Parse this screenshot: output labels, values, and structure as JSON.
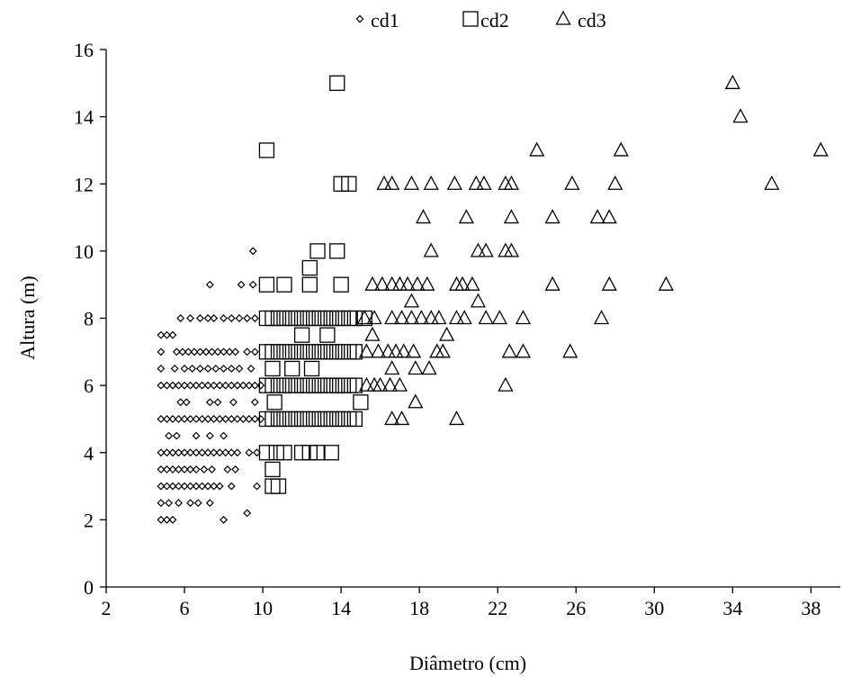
{
  "chart_data": {
    "type": "scatter",
    "title": "",
    "xlabel": "Diâmetro  (cm)",
    "ylabel": "Altura  (m)",
    "xlim": [
      2,
      39.5
    ],
    "ylim": [
      0,
      16
    ],
    "xticks": [
      2,
      6,
      10,
      14,
      18,
      22,
      26,
      30,
      34,
      38
    ],
    "yticks": [
      0,
      2,
      4,
      6,
      8,
      10,
      12,
      14,
      16
    ],
    "grid": false,
    "legend_position": "top-center",
    "series": [
      {
        "name": "cd1",
        "marker": "diamond",
        "points": [
          [
            4.8,
            7.5
          ],
          [
            5.1,
            7.5
          ],
          [
            5.4,
            7.5
          ],
          [
            4.8,
            7
          ],
          [
            5.6,
            7
          ],
          [
            5.9,
            7
          ],
          [
            6.2,
            7
          ],
          [
            6.5,
            7
          ],
          [
            6.8,
            7
          ],
          [
            7.1,
            7
          ],
          [
            7.4,
            7
          ],
          [
            7.7,
            7
          ],
          [
            8,
            7
          ],
          [
            8.3,
            7
          ],
          [
            8.6,
            7
          ],
          [
            9.2,
            7
          ],
          [
            9.6,
            7
          ],
          [
            5.8,
            8
          ],
          [
            6.3,
            8
          ],
          [
            6.8,
            8
          ],
          [
            7.2,
            8
          ],
          [
            7.5,
            8
          ],
          [
            8,
            8
          ],
          [
            8.4,
            8
          ],
          [
            8.8,
            8
          ],
          [
            9.2,
            8
          ],
          [
            9.6,
            8
          ],
          [
            4.8,
            6.5
          ],
          [
            5.5,
            6.5
          ],
          [
            6,
            6.5
          ],
          [
            6.4,
            6.5
          ],
          [
            6.8,
            6.5
          ],
          [
            7.2,
            6.5
          ],
          [
            7.6,
            6.5
          ],
          [
            8,
            6.5
          ],
          [
            8.4,
            6.5
          ],
          [
            8.8,
            6.5
          ],
          [
            9.4,
            6.5
          ],
          [
            4.8,
            6
          ],
          [
            5.1,
            6
          ],
          [
            5.4,
            6
          ],
          [
            5.7,
            6
          ],
          [
            6,
            6
          ],
          [
            6.3,
            6
          ],
          [
            6.6,
            6
          ],
          [
            6.9,
            6
          ],
          [
            7.2,
            6
          ],
          [
            7.5,
            6
          ],
          [
            7.8,
            6
          ],
          [
            8.1,
            6
          ],
          [
            8.4,
            6
          ],
          [
            8.7,
            6
          ],
          [
            9,
            6
          ],
          [
            9.3,
            6
          ],
          [
            9.6,
            6
          ],
          [
            9.9,
            6
          ],
          [
            5.8,
            5.5
          ],
          [
            6.1,
            5.5
          ],
          [
            7.3,
            5.5
          ],
          [
            7.7,
            5.5
          ],
          [
            8.5,
            5.5
          ],
          [
            9.6,
            5.5
          ],
          [
            4.8,
            5
          ],
          [
            5.1,
            5
          ],
          [
            5.4,
            5
          ],
          [
            5.7,
            5
          ],
          [
            6,
            5
          ],
          [
            6.3,
            5
          ],
          [
            6.6,
            5
          ],
          [
            6.9,
            5
          ],
          [
            7.2,
            5
          ],
          [
            7.5,
            5
          ],
          [
            7.8,
            5
          ],
          [
            8.1,
            5
          ],
          [
            8.4,
            5
          ],
          [
            8.7,
            5
          ],
          [
            9,
            5
          ],
          [
            9.3,
            5
          ],
          [
            9.6,
            5
          ],
          [
            9.9,
            5
          ],
          [
            5.2,
            4.5
          ],
          [
            5.6,
            4.5
          ],
          [
            6.6,
            4.5
          ],
          [
            7.3,
            4.5
          ],
          [
            8,
            4.5
          ],
          [
            4.8,
            4
          ],
          [
            5.1,
            4
          ],
          [
            5.4,
            4
          ],
          [
            5.7,
            4
          ],
          [
            6,
            4
          ],
          [
            6.3,
            4
          ],
          [
            6.6,
            4
          ],
          [
            6.9,
            4
          ],
          [
            7.2,
            4
          ],
          [
            7.5,
            4
          ],
          [
            7.8,
            4
          ],
          [
            8.1,
            4
          ],
          [
            8.4,
            4
          ],
          [
            8.7,
            4
          ],
          [
            9.3,
            4
          ],
          [
            9.7,
            4
          ],
          [
            4.8,
            3.5
          ],
          [
            5.1,
            3.5
          ],
          [
            5.4,
            3.5
          ],
          [
            5.7,
            3.5
          ],
          [
            6,
            3.5
          ],
          [
            6.3,
            3.5
          ],
          [
            6.6,
            3.5
          ],
          [
            7,
            3.5
          ],
          [
            7.4,
            3.5
          ],
          [
            8.2,
            3.5
          ],
          [
            8.6,
            3.5
          ],
          [
            4.8,
            3
          ],
          [
            5.1,
            3
          ],
          [
            5.4,
            3
          ],
          [
            5.7,
            3
          ],
          [
            6,
            3
          ],
          [
            6.3,
            3
          ],
          [
            6.6,
            3
          ],
          [
            6.9,
            3
          ],
          [
            7.2,
            3
          ],
          [
            7.5,
            3
          ],
          [
            7.8,
            3
          ],
          [
            8.4,
            3
          ],
          [
            9.7,
            3
          ],
          [
            4.8,
            2.5
          ],
          [
            5.2,
            2.5
          ],
          [
            5.7,
            2.5
          ],
          [
            6.3,
            2.5
          ],
          [
            6.7,
            2.5
          ],
          [
            7.3,
            2.5
          ],
          [
            4.8,
            2
          ],
          [
            5.1,
            2
          ],
          [
            5.4,
            2
          ],
          [
            8,
            2
          ],
          [
            9.2,
            2.2
          ],
          [
            7.3,
            9
          ],
          [
            8.9,
            9
          ],
          [
            9.5,
            9
          ],
          [
            9.5,
            10
          ]
        ]
      },
      {
        "name": "cd2",
        "marker": "square",
        "points": [
          [
            13.8,
            15
          ],
          [
            10.2,
            13
          ],
          [
            14,
            12
          ],
          [
            14.4,
            12
          ],
          [
            12.8,
            10
          ],
          [
            13.8,
            10
          ],
          [
            12.4,
            9.5
          ],
          [
            10.2,
            9
          ],
          [
            11.1,
            9
          ],
          [
            12.4,
            9
          ],
          [
            14,
            9
          ],
          [
            10.2,
            8
          ],
          [
            10.5,
            8
          ],
          [
            10.8,
            8
          ],
          [
            11.1,
            8
          ],
          [
            11.4,
            8
          ],
          [
            11.7,
            8
          ],
          [
            12,
            8
          ],
          [
            12.3,
            8
          ],
          [
            12.6,
            8
          ],
          [
            12.9,
            8
          ],
          [
            13.2,
            8
          ],
          [
            13.5,
            8
          ],
          [
            13.8,
            8
          ],
          [
            14.1,
            8
          ],
          [
            14.4,
            8
          ],
          [
            14.7,
            8
          ],
          [
            15.2,
            8
          ],
          [
            12,
            7.5
          ],
          [
            13.3,
            7.5
          ],
          [
            10.2,
            7
          ],
          [
            10.5,
            7
          ],
          [
            10.8,
            7
          ],
          [
            11.1,
            7
          ],
          [
            11.4,
            7
          ],
          [
            11.7,
            7
          ],
          [
            12,
            7
          ],
          [
            12.3,
            7
          ],
          [
            12.6,
            7
          ],
          [
            12.9,
            7
          ],
          [
            13.2,
            7
          ],
          [
            13.5,
            7
          ],
          [
            13.8,
            7
          ],
          [
            14.1,
            7
          ],
          [
            14.4,
            7
          ],
          [
            14.7,
            7
          ],
          [
            10.5,
            6.5
          ],
          [
            11.5,
            6.5
          ],
          [
            12.5,
            6.5
          ],
          [
            10.2,
            6
          ],
          [
            10.5,
            6
          ],
          [
            10.8,
            6
          ],
          [
            11.1,
            6
          ],
          [
            11.4,
            6
          ],
          [
            11.7,
            6
          ],
          [
            12,
            6
          ],
          [
            12.3,
            6
          ],
          [
            12.6,
            6
          ],
          [
            12.9,
            6
          ],
          [
            13.2,
            6
          ],
          [
            13.5,
            6
          ],
          [
            13.8,
            6
          ],
          [
            14.1,
            6
          ],
          [
            14.4,
            6
          ],
          [
            14.7,
            6
          ],
          [
            10.6,
            5.5
          ],
          [
            15,
            5.5
          ],
          [
            10.2,
            5
          ],
          [
            10.5,
            5
          ],
          [
            10.8,
            5
          ],
          [
            11.1,
            5
          ],
          [
            11.4,
            5
          ],
          [
            11.7,
            5
          ],
          [
            12,
            5
          ],
          [
            12.3,
            5
          ],
          [
            12.6,
            5
          ],
          [
            12.9,
            5
          ],
          [
            13.2,
            5
          ],
          [
            13.5,
            5
          ],
          [
            13.8,
            5
          ],
          [
            14.1,
            5
          ],
          [
            14.4,
            5
          ],
          [
            14.7,
            5
          ],
          [
            10.2,
            4
          ],
          [
            10.7,
            4
          ],
          [
            11.1,
            4
          ],
          [
            12,
            4
          ],
          [
            12.4,
            4
          ],
          [
            12.8,
            4
          ],
          [
            13.5,
            4
          ],
          [
            10.5,
            3.5
          ],
          [
            10.5,
            3
          ],
          [
            10.8,
            3
          ]
        ]
      },
      {
        "name": "cd3",
        "marker": "triangle",
        "points": [
          [
            34,
            15
          ],
          [
            34.4,
            14
          ],
          [
            24,
            13
          ],
          [
            28.3,
            13
          ],
          [
            38.5,
            13
          ],
          [
            16.2,
            12
          ],
          [
            16.6,
            12
          ],
          [
            17.6,
            12
          ],
          [
            18.6,
            12
          ],
          [
            19.8,
            12
          ],
          [
            20.9,
            12
          ],
          [
            21.3,
            12
          ],
          [
            22.4,
            12
          ],
          [
            22.7,
            12
          ],
          [
            25.8,
            12
          ],
          [
            28,
            12
          ],
          [
            36,
            12
          ],
          [
            18.2,
            11
          ],
          [
            20.4,
            11
          ],
          [
            22.7,
            11
          ],
          [
            24.8,
            11
          ],
          [
            27.1,
            11
          ],
          [
            27.7,
            11
          ],
          [
            18.6,
            10
          ],
          [
            21,
            10
          ],
          [
            21.4,
            10
          ],
          [
            22.4,
            10
          ],
          [
            22.7,
            10
          ],
          [
            15.6,
            9
          ],
          [
            16.1,
            9
          ],
          [
            16.6,
            9
          ],
          [
            17,
            9
          ],
          [
            17.4,
            9
          ],
          [
            17.9,
            9
          ],
          [
            18.4,
            9
          ],
          [
            19.9,
            9
          ],
          [
            20.2,
            9
          ],
          [
            20.7,
            9
          ],
          [
            24.8,
            9
          ],
          [
            27.7,
            9
          ],
          [
            30.6,
            9
          ],
          [
            17.6,
            8.5
          ],
          [
            21,
            8.5
          ],
          [
            15.2,
            8
          ],
          [
            15.7,
            8
          ],
          [
            16.6,
            8
          ],
          [
            17.1,
            8
          ],
          [
            17.6,
            8
          ],
          [
            18.1,
            8
          ],
          [
            18.6,
            8
          ],
          [
            19,
            8
          ],
          [
            19.9,
            8
          ],
          [
            20.3,
            8
          ],
          [
            21.4,
            8
          ],
          [
            22.1,
            8
          ],
          [
            23.3,
            8
          ],
          [
            27.3,
            8
          ],
          [
            15.6,
            7.5
          ],
          [
            19.4,
            7.5
          ],
          [
            15.3,
            7
          ],
          [
            15.9,
            7
          ],
          [
            16.4,
            7
          ],
          [
            16.8,
            7
          ],
          [
            17.2,
            7
          ],
          [
            17.7,
            7
          ],
          [
            18.9,
            7
          ],
          [
            19.2,
            7
          ],
          [
            22.6,
            7
          ],
          [
            23.3,
            7
          ],
          [
            25.7,
            7
          ],
          [
            16.6,
            6.5
          ],
          [
            17.8,
            6.5
          ],
          [
            18.5,
            6.5
          ],
          [
            15.3,
            6
          ],
          [
            15.7,
            6
          ],
          [
            16,
            6
          ],
          [
            16.5,
            6
          ],
          [
            17,
            6
          ],
          [
            22.4,
            6
          ],
          [
            17.8,
            5.5
          ],
          [
            16.6,
            5
          ],
          [
            17.1,
            5
          ],
          [
            19.9,
            5
          ]
        ]
      }
    ]
  }
}
